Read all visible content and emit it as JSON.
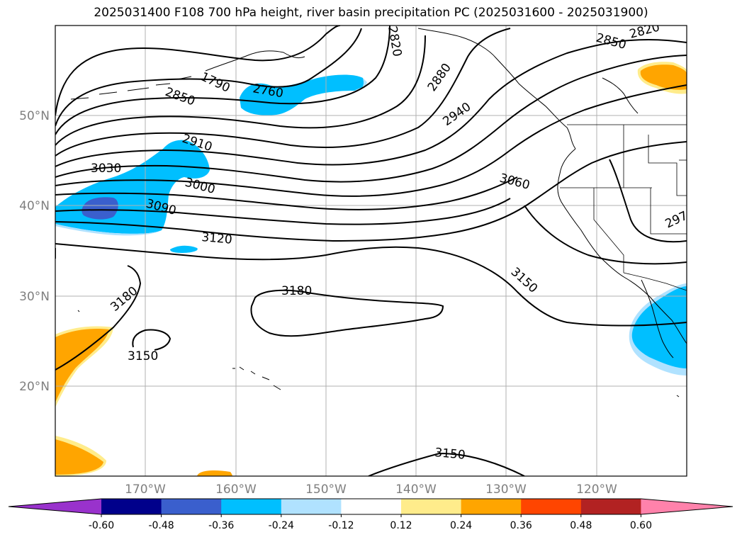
{
  "title": "2025031400 F108 700 hPa height, river basin precipitation PC (2025031600 - 2025031900)",
  "lat_labels": [
    "50°N",
    "40°N",
    "30°N",
    "20°N"
  ],
  "lon_labels": [
    "170°W",
    "160°W",
    "150°W",
    "140°W",
    "130°W",
    "120°W"
  ],
  "contour_labels": [
    "1790",
    "2760",
    "2820",
    "2820",
    "2850",
    "2850",
    "2880",
    "2910",
    "2940",
    "3000",
    "3030",
    "3060",
    "3090",
    "3120",
    "3150",
    "3180",
    "3180",
    "3150",
    "3150",
    "297"
  ],
  "colorbar": {
    "ticks": [
      "-0.60",
      "-0.48",
      "-0.36",
      "-0.24",
      "-0.12",
      "0.12",
      "0.24",
      "0.36",
      "0.48",
      "0.60"
    ],
    "colors": [
      "#9932cc",
      "#00008b",
      "#3a5fcd",
      "#00bfff",
      "#b0e2ff",
      "#ffffff",
      "#ffec8b",
      "#ffa500",
      "#ff4500",
      "#b22222",
      "#ff82ab"
    ]
  },
  "colors": {
    "strong_negative": "#3a5fcd",
    "negative": "#00bfff",
    "weak_negative": "#b0e2ff",
    "weak_positive": "#ffec8b",
    "positive": "#ffa500"
  }
}
